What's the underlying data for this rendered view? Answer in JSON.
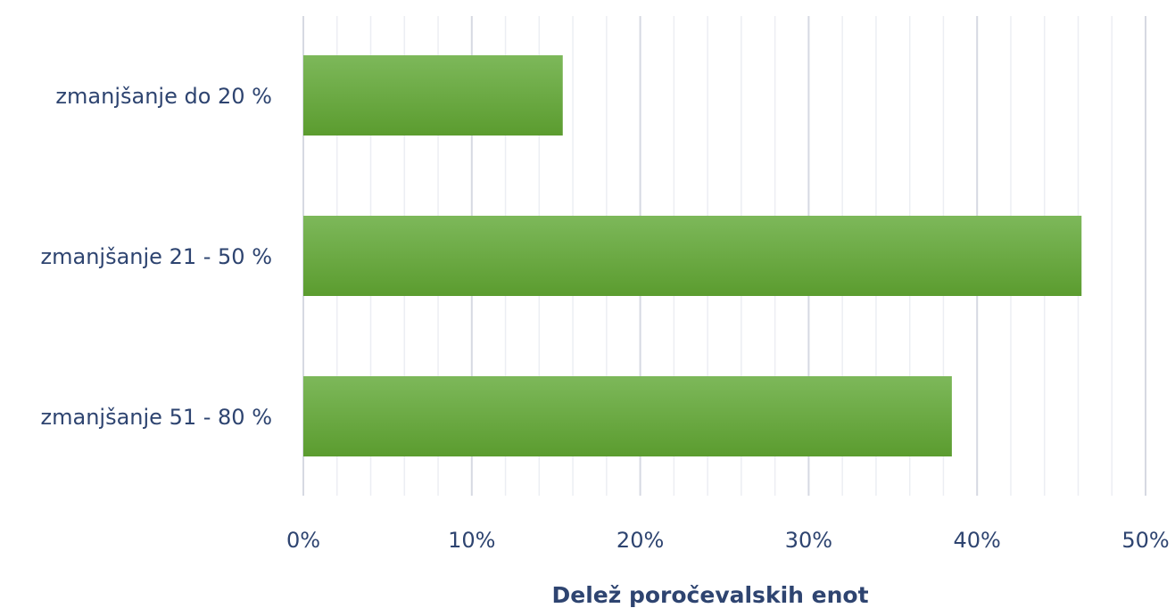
{
  "chart_data": {
    "type": "bar",
    "orientation": "horizontal",
    "categories": [
      "zmanjšanje do 20 %",
      "zmanjšanje 21 - 50 %",
      "zmanjšanje 51 - 80 %"
    ],
    "values": [
      15.4,
      46.2,
      38.5
    ],
    "unit": "%",
    "xlabel": "Delež poročevalskih enot",
    "ylabel": "",
    "xlim": [
      0,
      50
    ],
    "x_ticks": [
      "0%",
      "10%",
      "20%",
      "30%",
      "40%",
      "50%"
    ],
    "x_tick_values": [
      0,
      10,
      20,
      30,
      40,
      50
    ],
    "minor_gridlines_step": 2,
    "grid": true,
    "legend": "none",
    "colors": {
      "bar_top": "#7db85a",
      "bar_bottom": "#5b9c2f",
      "major_grid": "#d6d9e2",
      "minor_grid": "#eceef3",
      "text": "#2e4470"
    }
  }
}
